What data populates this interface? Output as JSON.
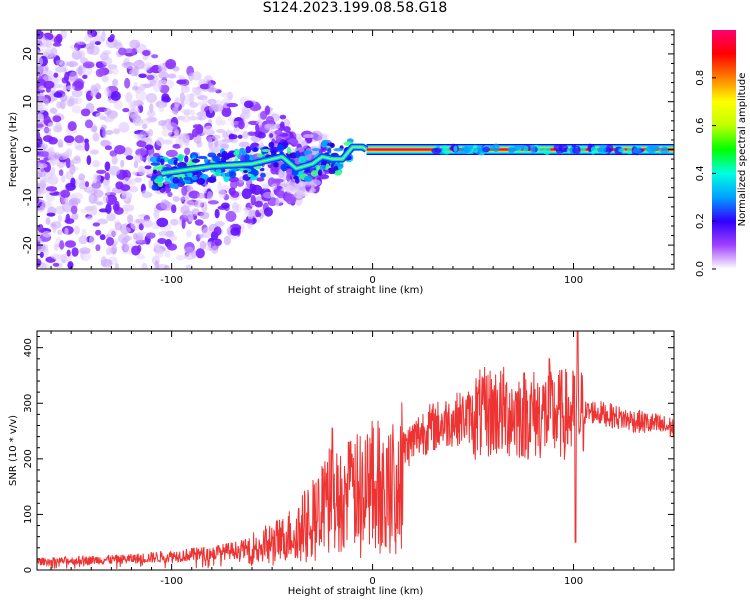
{
  "title": "S124.2023.199.08.58.G18",
  "chart_data": [
    {
      "type": "heatmap",
      "xlabel": "Height of straight line (km)",
      "ylabel": "Frequency (Hz)",
      "xlim": [
        -167,
        150
      ],
      "ylim": [
        -25,
        25
      ],
      "x_ticks": [
        -100,
        0,
        100
      ],
      "y_ticks": [
        -20,
        -10,
        0,
        10,
        20
      ],
      "colorbar": {
        "label": "Normalized spectral amplitude",
        "range": [
          0,
          1
        ],
        "ticks": [
          "0.0",
          "0.2",
          "0.4",
          "0.6",
          "0.8"
        ],
        "colormap": [
          "#ffffff",
          "#a040ff",
          "#3000ff",
          "#00a0ff",
          "#00ffe0",
          "#00ff00",
          "#c0ff00",
          "#ffff00",
          "#ff8000",
          "#ff0000",
          "#ff0070"
        ]
      },
      "ridge": [
        {
          "x": -105,
          "y": -5
        },
        {
          "x": -80,
          "y": -3.5
        },
        {
          "x": -60,
          "y": -3
        },
        {
          "x": -45,
          "y": -1.5
        },
        {
          "x": -38,
          "y": -4
        },
        {
          "x": -30,
          "y": -3
        },
        {
          "x": -25,
          "y": -1.5
        },
        {
          "x": -20,
          "y": -2
        },
        {
          "x": -15,
          "y": -2
        },
        {
          "x": -10,
          "y": 0.5
        },
        {
          "x": -5,
          "y": 0.5
        },
        {
          "x": -3,
          "y": 0
        },
        {
          "x": 150,
          "y": 0
        }
      ]
    },
    {
      "type": "line",
      "xlabel": "Height of straight line (km)",
      "ylabel": "SNR (10 * v/v)",
      "xlim": [
        -167,
        150
      ],
      "ylim": [
        0,
        430
      ],
      "x_ticks": [
        -100,
        0,
        100
      ],
      "y_ticks": [
        0,
        100,
        200,
        300,
        400
      ],
      "color": "#ee3333",
      "envelope": [
        {
          "x": -167,
          "y": 15
        },
        {
          "x": -120,
          "y": 20
        },
        {
          "x": -80,
          "y": 30
        },
        {
          "x": -60,
          "y": 40
        },
        {
          "x": -45,
          "y": 55
        },
        {
          "x": -35,
          "y": 80
        },
        {
          "x": -25,
          "y": 110
        },
        {
          "x": -15,
          "y": 130
        },
        {
          "x": -5,
          "y": 145
        },
        {
          "x": 5,
          "y": 150
        },
        {
          "x": 12,
          "y": 160
        },
        {
          "x": 15,
          "y": 215
        },
        {
          "x": 25,
          "y": 250
        },
        {
          "x": 40,
          "y": 270
        },
        {
          "x": 60,
          "y": 285
        },
        {
          "x": 80,
          "y": 280
        },
        {
          "x": 100,
          "y": 280
        },
        {
          "x": 110,
          "y": 285
        },
        {
          "x": 125,
          "y": 272
        },
        {
          "x": 140,
          "y": 262
        },
        {
          "x": 150,
          "y": 255
        }
      ],
      "spikes": [
        {
          "x": -20,
          "y": 255
        },
        {
          "x": -12,
          "y": 230
        },
        {
          "x": 55,
          "y": 345
        },
        {
          "x": 88,
          "y": 380
        },
        {
          "x": 101,
          "y": 50
        },
        {
          "x": 102,
          "y": 430
        }
      ]
    }
  ]
}
